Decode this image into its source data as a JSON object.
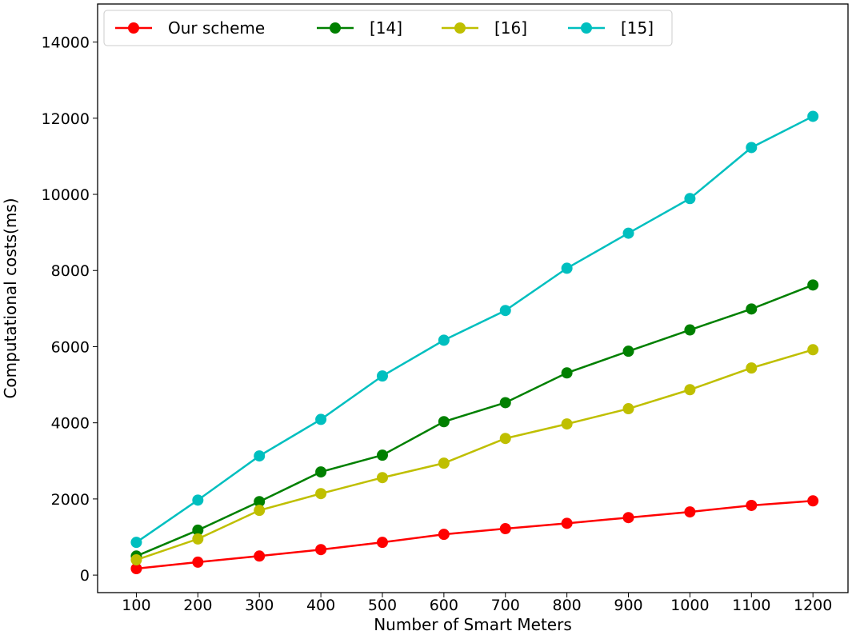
{
  "chart_data": {
    "type": "line",
    "title": "",
    "xlabel": "Number of Smart Meters",
    "ylabel": "Computational costs(ms)",
    "x": [
      100,
      200,
      300,
      400,
      500,
      600,
      700,
      800,
      900,
      1000,
      1100,
      1200
    ],
    "xticks": [
      "100",
      "200",
      "300",
      "400",
      "500",
      "600",
      "700",
      "800",
      "900",
      "1000",
      "1100",
      "1200"
    ],
    "yticks": [
      "0",
      "2000",
      "4000",
      "6000",
      "8000",
      "10000",
      "12000",
      "14000"
    ],
    "xlim": [
      37,
      1257
    ],
    "ylim": [
      -460,
      15000
    ],
    "grid": false,
    "legend_placement": "top",
    "series": [
      {
        "name": "Our scheme",
        "color": "#ff0000",
        "values": [
          170,
          340,
          500,
          670,
          860,
          1070,
          1220,
          1360,
          1510,
          1660,
          1830,
          1950
        ]
      },
      {
        "name": "[14]",
        "color": "#008000",
        "values": [
          500,
          1180,
          1930,
          2710,
          3150,
          4030,
          4530,
          5310,
          5880,
          6440,
          6990,
          7620
        ]
      },
      {
        "name": "[16]",
        "color": "#bfbf00",
        "values": [
          400,
          950,
          1700,
          2140,
          2560,
          2940,
          3590,
          3970,
          4370,
          4870,
          5440,
          5920
        ]
      },
      {
        "name": "[15]",
        "color": "#00bfbf",
        "values": [
          860,
          1970,
          3130,
          4090,
          5230,
          6170,
          6950,
          8060,
          8980,
          9890,
          11230,
          12050
        ]
      }
    ]
  }
}
